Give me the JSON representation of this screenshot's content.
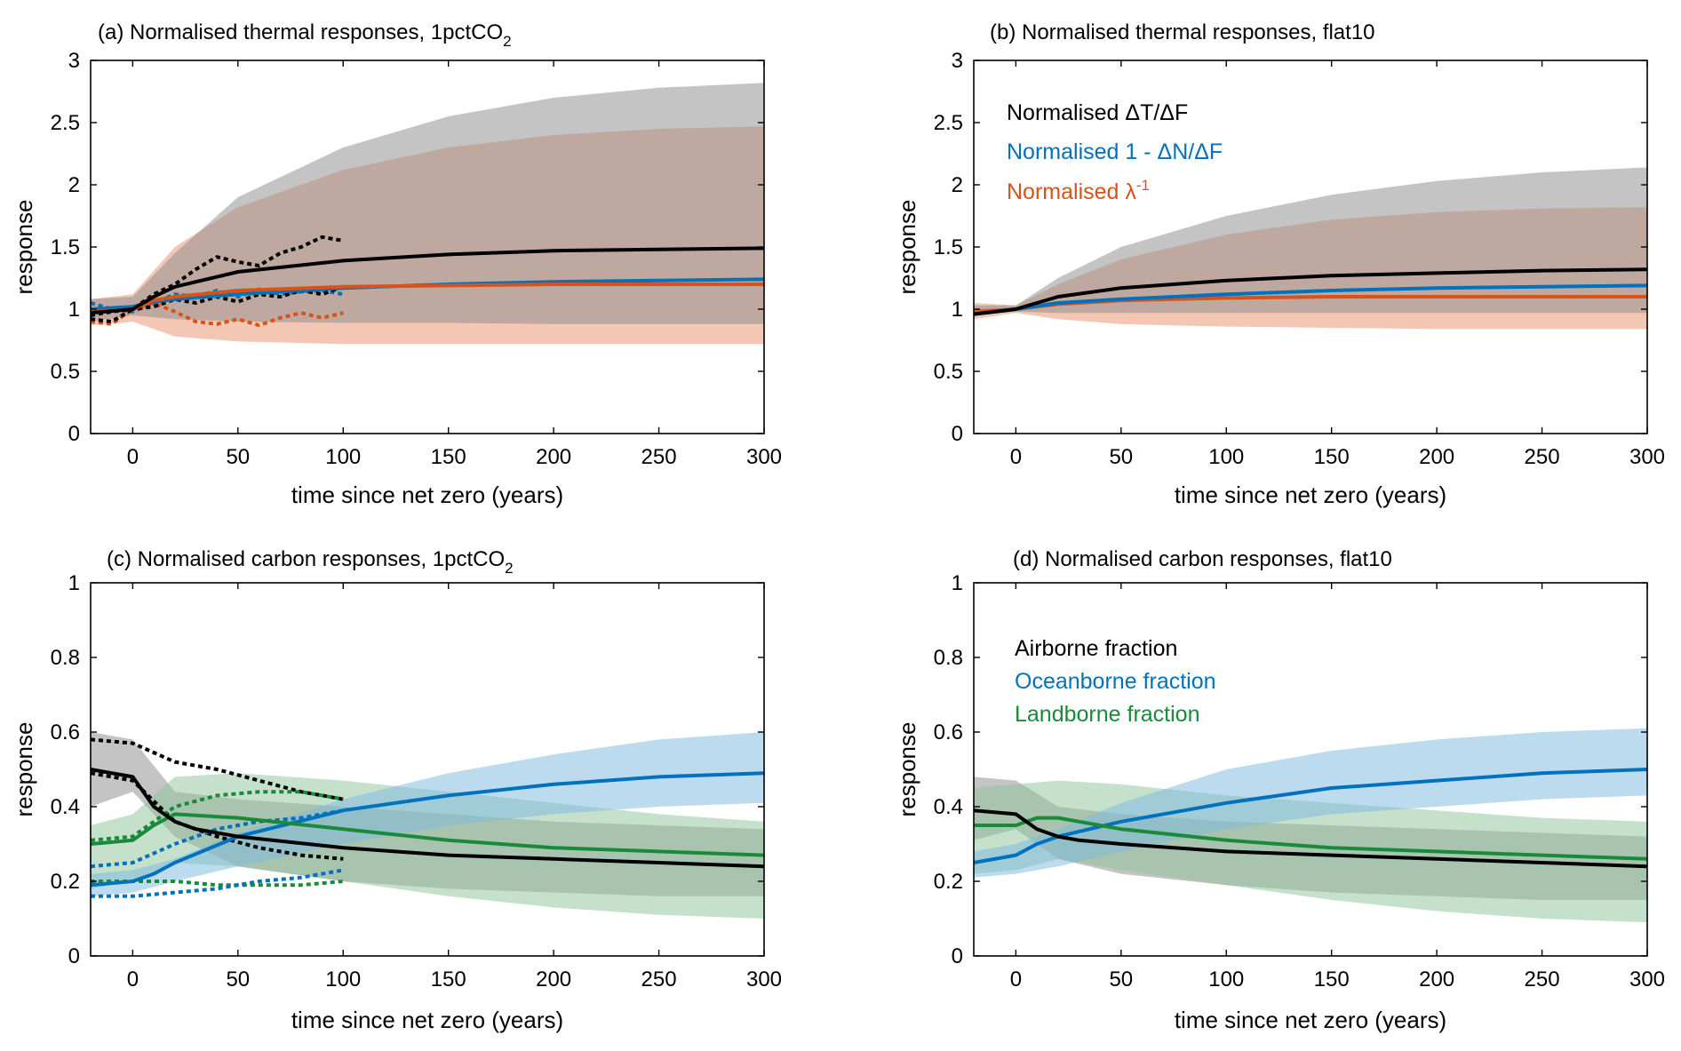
{
  "colors": {
    "black": "#000000",
    "blue": "#0072BD",
    "orange": "#D95319",
    "green": "#1A8A3A",
    "band_gray": "#8a8a8a",
    "band_orange": "#e8906a",
    "band_blue": "#7ab8e0",
    "band_green": "#8cc49a"
  },
  "chart_data": [
    {
      "type": "line",
      "title_main": "(a) Normalised thermal responses, 1pctCO",
      "title_sub": "2",
      "xlabel": "time since net zero (years)",
      "ylabel": "response",
      "xlim": [
        -20,
        300
      ],
      "ylim": [
        0,
        3
      ],
      "xticks": [
        "0",
        "50",
        "100",
        "150",
        "200",
        "250",
        "300"
      ],
      "yticks": [
        "0",
        "0.5",
        "1",
        "1.5",
        "2",
        "2.5",
        "3"
      ],
      "bands": [
        {
          "color": "band_orange",
          "x": [
            -20,
            0,
            20,
            50,
            100,
            150,
            200,
            250,
            300
          ],
          "lower": [
            0.87,
            0.9,
            0.78,
            0.74,
            0.72,
            0.72,
            0.72,
            0.72,
            0.72
          ],
          "upper": [
            1.08,
            1.12,
            1.5,
            1.82,
            2.12,
            2.3,
            2.4,
            2.45,
            2.47
          ]
        },
        {
          "color": "band_gray",
          "x": [
            -20,
            0,
            20,
            50,
            100,
            150,
            200,
            250,
            300
          ],
          "lower": [
            0.9,
            0.95,
            0.92,
            0.9,
            0.89,
            0.89,
            0.88,
            0.88,
            0.88
          ],
          "upper": [
            1.08,
            1.1,
            1.45,
            1.9,
            2.3,
            2.55,
            2.7,
            2.78,
            2.82
          ]
        }
      ],
      "series": [
        {
          "color": "blue",
          "x": [
            -20,
            0,
            10,
            20,
            50,
            100,
            150,
            200,
            250,
            300
          ],
          "y": [
            1.0,
            1.02,
            1.06,
            1.08,
            1.12,
            1.17,
            1.2,
            1.22,
            1.23,
            1.24
          ]
        },
        {
          "color": "orange",
          "x": [
            -20,
            0,
            10,
            20,
            50,
            100,
            150,
            200,
            250,
            300
          ],
          "y": [
            0.98,
            1.0,
            1.07,
            1.1,
            1.15,
            1.18,
            1.19,
            1.2,
            1.2,
            1.2
          ]
        },
        {
          "color": "black",
          "x": [
            -20,
            0,
            10,
            20,
            50,
            100,
            150,
            200,
            250,
            300
          ],
          "y": [
            0.97,
            1.0,
            1.1,
            1.18,
            1.3,
            1.39,
            1.44,
            1.47,
            1.48,
            1.49
          ]
        }
      ],
      "dotted": [
        {
          "color": "blue",
          "x": [
            -20,
            -10,
            0,
            10,
            20,
            30,
            40,
            50,
            60,
            70,
            80,
            90,
            100
          ],
          "y": [
            1.05,
            1.0,
            0.98,
            1.05,
            1.12,
            1.1,
            1.15,
            1.1,
            1.16,
            1.12,
            1.14,
            1.15,
            1.12
          ]
        },
        {
          "color": "orange",
          "x": [
            -20,
            -10,
            0,
            10,
            20,
            30,
            40,
            50,
            60,
            70,
            80,
            90,
            100
          ],
          "y": [
            0.9,
            0.88,
            1.0,
            1.05,
            0.98,
            0.9,
            0.88,
            0.92,
            0.87,
            0.93,
            0.97,
            0.93,
            0.97
          ]
        },
        {
          "color": "black",
          "x": [
            -20,
            -10,
            0,
            10,
            20,
            30,
            40,
            50,
            60,
            70,
            80,
            90,
            100
          ],
          "y": [
            0.92,
            0.9,
            1.0,
            1.12,
            1.2,
            1.32,
            1.42,
            1.38,
            1.35,
            1.45,
            1.5,
            1.58,
            1.55
          ]
        },
        {
          "color": "black",
          "x": [
            -20,
            -10,
            0,
            10,
            20,
            30,
            40,
            50,
            60,
            70,
            80,
            90,
            100
          ],
          "y": [
            0.95,
            0.98,
            1.0,
            1.02,
            1.08,
            1.05,
            1.1,
            1.06,
            1.12,
            1.1,
            1.15,
            1.12,
            1.18
          ]
        }
      ],
      "legend": []
    },
    {
      "type": "line",
      "title_main": "(b) Normalised thermal responses, flat10",
      "title_sub": "",
      "xlabel": "time since net zero (years)",
      "ylabel": "response",
      "xlim": [
        -20,
        300
      ],
      "ylim": [
        0,
        3
      ],
      "xticks": [
        "0",
        "50",
        "100",
        "150",
        "200",
        "250",
        "300"
      ],
      "yticks": [
        "0",
        "0.5",
        "1",
        "1.5",
        "2",
        "2.5",
        "3"
      ],
      "bands": [
        {
          "color": "band_orange",
          "x": [
            -20,
            0,
            20,
            50,
            100,
            150,
            200,
            250,
            300
          ],
          "lower": [
            0.92,
            0.97,
            0.92,
            0.88,
            0.86,
            0.85,
            0.84,
            0.84,
            0.84
          ],
          "upper": [
            1.05,
            1.03,
            1.2,
            1.4,
            1.6,
            1.72,
            1.78,
            1.81,
            1.82
          ]
        },
        {
          "color": "band_gray",
          "x": [
            -20,
            0,
            20,
            50,
            100,
            150,
            200,
            250,
            300
          ],
          "lower": [
            0.95,
            0.98,
            0.97,
            0.97,
            0.97,
            0.97,
            0.97,
            0.97,
            0.97
          ],
          "upper": [
            1.03,
            1.03,
            1.25,
            1.5,
            1.75,
            1.92,
            2.03,
            2.1,
            2.14
          ]
        }
      ],
      "series": [
        {
          "color": "orange",
          "x": [
            -20,
            0,
            20,
            50,
            100,
            150,
            200,
            250,
            300
          ],
          "y": [
            0.98,
            1.0,
            1.04,
            1.07,
            1.09,
            1.1,
            1.1,
            1.1,
            1.1
          ]
        },
        {
          "color": "blue",
          "x": [
            -20,
            0,
            20,
            50,
            100,
            150,
            200,
            250,
            300
          ],
          "y": [
            0.96,
            1.0,
            1.05,
            1.08,
            1.12,
            1.15,
            1.17,
            1.18,
            1.19
          ]
        },
        {
          "color": "black",
          "x": [
            -20,
            0,
            20,
            50,
            100,
            150,
            200,
            250,
            300
          ],
          "y": [
            0.96,
            1.0,
            1.1,
            1.17,
            1.23,
            1.27,
            1.29,
            1.31,
            1.32
          ]
        }
      ],
      "dotted": [],
      "legend": [
        {
          "text": "Normalised ΔT/ΔF",
          "color": "black",
          "sup": ""
        },
        {
          "text": "Normalised 1 - ΔN/ΔF",
          "color": "blue",
          "sup": ""
        },
        {
          "text": "Normalised λ",
          "color": "orange",
          "sup": "-1"
        }
      ]
    },
    {
      "type": "line",
      "title_main": "(c) Normalised carbon responses, 1pctCO",
      "title_sub": "2",
      "xlabel": "time since net zero (years)",
      "ylabel": "response",
      "xlim": [
        -20,
        300
      ],
      "ylim": [
        0,
        1
      ],
      "xticks": [
        "0",
        "50",
        "100",
        "150",
        "200",
        "250",
        "300"
      ],
      "yticks": [
        "0",
        "0.2",
        "0.4",
        "0.6",
        "0.8",
        "1"
      ],
      "bands": [
        {
          "color": "band_gray",
          "x": [
            -20,
            0,
            20,
            50,
            100,
            150,
            200,
            250,
            300
          ],
          "lower": [
            0.4,
            0.44,
            0.32,
            0.24,
            0.2,
            0.18,
            0.17,
            0.16,
            0.16
          ],
          "upper": [
            0.6,
            0.58,
            0.44,
            0.42,
            0.4,
            0.38,
            0.36,
            0.35,
            0.34
          ]
        },
        {
          "color": "band_green",
          "x": [
            -20,
            0,
            20,
            50,
            100,
            150,
            200,
            250,
            300
          ],
          "lower": [
            0.18,
            0.2,
            0.25,
            0.24,
            0.2,
            0.16,
            0.13,
            0.11,
            0.1
          ],
          "upper": [
            0.35,
            0.38,
            0.48,
            0.49,
            0.47,
            0.44,
            0.41,
            0.38,
            0.36
          ]
        },
        {
          "color": "band_blue",
          "x": [
            -20,
            0,
            20,
            50,
            100,
            150,
            200,
            250,
            300
          ],
          "lower": [
            0.16,
            0.17,
            0.2,
            0.24,
            0.3,
            0.35,
            0.38,
            0.4,
            0.41
          ],
          "upper": [
            0.22,
            0.23,
            0.26,
            0.33,
            0.42,
            0.49,
            0.54,
            0.58,
            0.6
          ]
        }
      ],
      "series": [
        {
          "color": "blue",
          "x": [
            -20,
            0,
            10,
            20,
            50,
            100,
            150,
            200,
            250,
            300
          ],
          "y": [
            0.19,
            0.2,
            0.22,
            0.25,
            0.32,
            0.39,
            0.43,
            0.46,
            0.48,
            0.49
          ]
        },
        {
          "color": "green",
          "x": [
            -20,
            0,
            10,
            20,
            50,
            100,
            150,
            200,
            250,
            300
          ],
          "y": [
            0.3,
            0.31,
            0.35,
            0.38,
            0.37,
            0.34,
            0.31,
            0.29,
            0.28,
            0.27
          ]
        },
        {
          "color": "black",
          "x": [
            -20,
            0,
            10,
            20,
            30,
            50,
            100,
            150,
            200,
            250,
            300
          ],
          "y": [
            0.5,
            0.48,
            0.4,
            0.36,
            0.34,
            0.32,
            0.29,
            0.27,
            0.26,
            0.25,
            0.24
          ]
        }
      ],
      "dotted": [
        {
          "color": "black",
          "x": [
            -20,
            0,
            20,
            40,
            60,
            80,
            100
          ],
          "y": [
            0.58,
            0.57,
            0.52,
            0.5,
            0.47,
            0.44,
            0.42
          ]
        },
        {
          "color": "black",
          "x": [
            -20,
            0,
            20,
            40,
            60,
            80,
            100
          ],
          "y": [
            0.49,
            0.47,
            0.36,
            0.32,
            0.29,
            0.27,
            0.26
          ]
        },
        {
          "color": "green",
          "x": [
            -20,
            0,
            20,
            40,
            60,
            80,
            100
          ],
          "y": [
            0.31,
            0.32,
            0.4,
            0.43,
            0.44,
            0.44,
            0.42
          ]
        },
        {
          "color": "green",
          "x": [
            -20,
            0,
            20,
            40,
            60,
            80,
            100
          ],
          "y": [
            0.2,
            0.2,
            0.2,
            0.19,
            0.19,
            0.19,
            0.2
          ]
        },
        {
          "color": "blue",
          "x": [
            -20,
            0,
            20,
            40,
            60,
            80,
            100
          ],
          "y": [
            0.24,
            0.25,
            0.3,
            0.34,
            0.36,
            0.37,
            0.39
          ]
        },
        {
          "color": "blue",
          "x": [
            -20,
            0,
            20,
            40,
            60,
            80,
            100
          ],
          "y": [
            0.16,
            0.16,
            0.17,
            0.18,
            0.2,
            0.21,
            0.23
          ]
        }
      ],
      "legend": []
    },
    {
      "type": "line",
      "title_main": "(d) Normalised carbon responses, flat10",
      "title_sub": "",
      "xlabel": "time since net zero (years)",
      "ylabel": "response",
      "xlim": [
        -20,
        300
      ],
      "ylim": [
        0,
        1
      ],
      "xticks": [
        "0",
        "50",
        "100",
        "150",
        "200",
        "250",
        "300"
      ],
      "yticks": [
        "0",
        "0.2",
        "0.4",
        "0.6",
        "0.8",
        "1"
      ],
      "bands": [
        {
          "color": "band_gray",
          "x": [
            -20,
            0,
            20,
            50,
            100,
            150,
            200,
            250,
            300
          ],
          "lower": [
            0.31,
            0.34,
            0.26,
            0.22,
            0.19,
            0.17,
            0.16,
            0.15,
            0.15
          ],
          "upper": [
            0.48,
            0.47,
            0.4,
            0.38,
            0.36,
            0.35,
            0.34,
            0.33,
            0.32
          ]
        },
        {
          "color": "band_green",
          "x": [
            -20,
            0,
            20,
            50,
            100,
            150,
            200,
            250,
            300
          ],
          "lower": [
            0.22,
            0.23,
            0.26,
            0.23,
            0.19,
            0.15,
            0.12,
            0.1,
            0.09
          ],
          "upper": [
            0.45,
            0.46,
            0.47,
            0.46,
            0.43,
            0.41,
            0.39,
            0.37,
            0.36
          ]
        },
        {
          "color": "band_blue",
          "x": [
            -20,
            0,
            20,
            50,
            100,
            150,
            200,
            250,
            300
          ],
          "lower": [
            0.21,
            0.22,
            0.24,
            0.28,
            0.34,
            0.38,
            0.4,
            0.42,
            0.43
          ]
        },
        {
          "color": "band_blue",
          "x": [
            -20,
            0,
            20,
            50,
            100,
            150,
            200,
            250,
            300
          ],
          "lower": [
            0.21,
            0.22,
            0.24,
            0.28,
            0.34,
            0.38,
            0.4,
            0.42,
            0.43
          ],
          "upper": [
            0.28,
            0.3,
            0.34,
            0.41,
            0.5,
            0.55,
            0.58,
            0.6,
            0.61
          ]
        }
      ],
      "series": [
        {
          "color": "blue",
          "x": [
            -20,
            0,
            10,
            20,
            50,
            100,
            150,
            200,
            250,
            300
          ],
          "y": [
            0.25,
            0.27,
            0.3,
            0.32,
            0.36,
            0.41,
            0.45,
            0.47,
            0.49,
            0.5
          ]
        },
        {
          "color": "green",
          "x": [
            -20,
            0,
            10,
            20,
            50,
            100,
            150,
            200,
            250,
            300
          ],
          "y": [
            0.35,
            0.35,
            0.37,
            0.37,
            0.34,
            0.31,
            0.29,
            0.28,
            0.27,
            0.26
          ]
        },
        {
          "color": "black",
          "x": [
            -20,
            0,
            10,
            20,
            30,
            50,
            100,
            150,
            200,
            250,
            300
          ],
          "y": [
            0.39,
            0.38,
            0.34,
            0.32,
            0.31,
            0.3,
            0.28,
            0.27,
            0.26,
            0.25,
            0.24
          ]
        }
      ],
      "dotted": [],
      "legend": [
        {
          "text": "Airborne fraction",
          "color": "black",
          "sup": ""
        },
        {
          "text": "Oceanborne fraction",
          "color": "blue",
          "sup": ""
        },
        {
          "text": "Landborne fraction",
          "color": "green",
          "sup": ""
        }
      ]
    }
  ]
}
